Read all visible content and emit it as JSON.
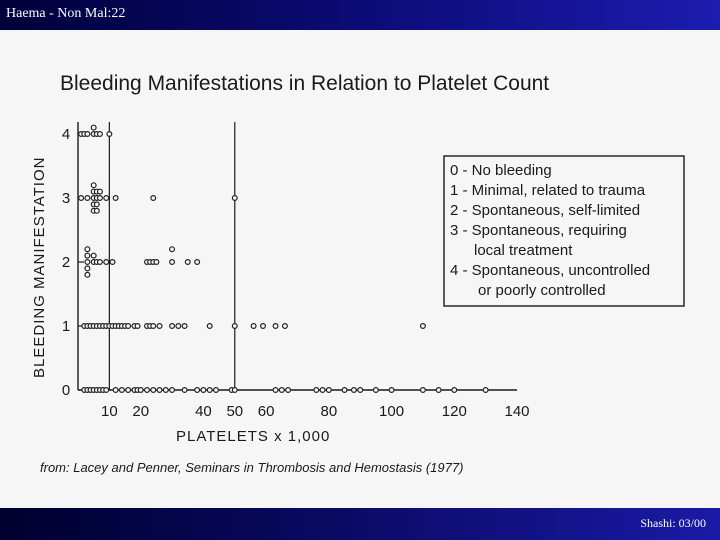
{
  "header": {
    "title": "Haema - Non Mal:22"
  },
  "footer": {
    "text": "Shashi: 03/00"
  },
  "colors": {
    "header_bar": "#0a0a70",
    "slide_background": "#f6f6f6",
    "ink": "#1a1a1a"
  },
  "chart_data": {
    "type": "scatter",
    "title": "Bleeding Manifestations in Relation to Platelet Count",
    "xlabel": "PLATELETS x 1,000",
    "ylabel": "BLEEDING MANIFESTATION",
    "x_ticks": [
      10,
      20,
      40,
      50,
      60,
      80,
      100,
      120,
      140
    ],
    "y_ticks": [
      0,
      1,
      2,
      3,
      4
    ],
    "xlim": [
      0,
      140
    ],
    "ylim": [
      0,
      4
    ],
    "reference_lines_x": [
      10,
      50
    ],
    "grid": false,
    "legend_position": "right",
    "legend": [
      "0 - No bleeding",
      "1 - Minimal, related to trauma",
      "2 - Spontaneous, self-limited",
      "3 - Spontaneous, requiring",
      "local treatment",
      "4 - Spontaneous, uncontrolled",
      "or poorly controlled"
    ],
    "source": "from: Lacey and Penner, Seminars in Thrombosis and Hemostasis (1977)",
    "points": [
      {
        "x": 1,
        "y": 4
      },
      {
        "x": 2,
        "y": 4
      },
      {
        "x": 3,
        "y": 4
      },
      {
        "x": 5,
        "y": 4
      },
      {
        "x": 5,
        "y": 4.1
      },
      {
        "x": 6,
        "y": 4
      },
      {
        "x": 7,
        "y": 4
      },
      {
        "x": 10,
        "y": 4
      },
      {
        "x": 1,
        "y": 3
      },
      {
        "x": 3,
        "y": 3
      },
      {
        "x": 5,
        "y": 3
      },
      {
        "x": 5,
        "y": 3.1
      },
      {
        "x": 5,
        "y": 3.2
      },
      {
        "x": 5,
        "y": 2.9
      },
      {
        "x": 5,
        "y": 2.8
      },
      {
        "x": 6,
        "y": 3
      },
      {
        "x": 6,
        "y": 3.1
      },
      {
        "x": 6,
        "y": 2.9
      },
      {
        "x": 6,
        "y": 2.8
      },
      {
        "x": 7,
        "y": 3
      },
      {
        "x": 7,
        "y": 3.1
      },
      {
        "x": 9,
        "y": 3
      },
      {
        "x": 12,
        "y": 3
      },
      {
        "x": 24,
        "y": 3
      },
      {
        "x": 50,
        "y": 3
      },
      {
        "x": 3,
        "y": 2
      },
      {
        "x": 3,
        "y": 2.1
      },
      {
        "x": 3,
        "y": 2.2
      },
      {
        "x": 3,
        "y": 1.9
      },
      {
        "x": 3,
        "y": 1.8
      },
      {
        "x": 5,
        "y": 2
      },
      {
        "x": 5,
        "y": 2.1
      },
      {
        "x": 6,
        "y": 2
      },
      {
        "x": 7,
        "y": 2
      },
      {
        "x": 9,
        "y": 2
      },
      {
        "x": 11,
        "y": 2
      },
      {
        "x": 22,
        "y": 2
      },
      {
        "x": 23,
        "y": 2
      },
      {
        "x": 24,
        "y": 2
      },
      {
        "x": 25,
        "y": 2
      },
      {
        "x": 30,
        "y": 2
      },
      {
        "x": 30,
        "y": 2.2
      },
      {
        "x": 35,
        "y": 2
      },
      {
        "x": 38,
        "y": 2
      },
      {
        "x": 2,
        "y": 1
      },
      {
        "x": 3,
        "y": 1
      },
      {
        "x": 4,
        "y": 1
      },
      {
        "x": 5,
        "y": 1
      },
      {
        "x": 6,
        "y": 1
      },
      {
        "x": 7,
        "y": 1
      },
      {
        "x": 8,
        "y": 1
      },
      {
        "x": 9,
        "y": 1
      },
      {
        "x": 10,
        "y": 1
      },
      {
        "x": 11,
        "y": 1
      },
      {
        "x": 12,
        "y": 1
      },
      {
        "x": 13,
        "y": 1
      },
      {
        "x": 14,
        "y": 1
      },
      {
        "x": 15,
        "y": 1
      },
      {
        "x": 16,
        "y": 1
      },
      {
        "x": 18,
        "y": 1
      },
      {
        "x": 19,
        "y": 1
      },
      {
        "x": 22,
        "y": 1
      },
      {
        "x": 23,
        "y": 1
      },
      {
        "x": 24,
        "y": 1
      },
      {
        "x": 26,
        "y": 1
      },
      {
        "x": 30,
        "y": 1
      },
      {
        "x": 32,
        "y": 1
      },
      {
        "x": 34,
        "y": 1
      },
      {
        "x": 42,
        "y": 1
      },
      {
        "x": 50,
        "y": 1
      },
      {
        "x": 56,
        "y": 1
      },
      {
        "x": 59,
        "y": 1
      },
      {
        "x": 63,
        "y": 1
      },
      {
        "x": 66,
        "y": 1
      },
      {
        "x": 110,
        "y": 1
      },
      {
        "x": 2,
        "y": 0
      },
      {
        "x": 3,
        "y": 0
      },
      {
        "x": 4,
        "y": 0
      },
      {
        "x": 5,
        "y": 0
      },
      {
        "x": 6,
        "y": 0
      },
      {
        "x": 7,
        "y": 0
      },
      {
        "x": 8,
        "y": 0
      },
      {
        "x": 9,
        "y": 0
      },
      {
        "x": 12,
        "y": 0
      },
      {
        "x": 14,
        "y": 0
      },
      {
        "x": 16,
        "y": 0
      },
      {
        "x": 18,
        "y": 0
      },
      {
        "x": 19,
        "y": 0
      },
      {
        "x": 20,
        "y": 0
      },
      {
        "x": 22,
        "y": 0
      },
      {
        "x": 24,
        "y": 0
      },
      {
        "x": 26,
        "y": 0
      },
      {
        "x": 28,
        "y": 0
      },
      {
        "x": 30,
        "y": 0
      },
      {
        "x": 34,
        "y": 0
      },
      {
        "x": 38,
        "y": 0
      },
      {
        "x": 40,
        "y": 0
      },
      {
        "x": 42,
        "y": 0
      },
      {
        "x": 44,
        "y": 0
      },
      {
        "x": 49,
        "y": 0
      },
      {
        "x": 50,
        "y": 0
      },
      {
        "x": 63,
        "y": 0
      },
      {
        "x": 65,
        "y": 0
      },
      {
        "x": 67,
        "y": 0
      },
      {
        "x": 76,
        "y": 0
      },
      {
        "x": 78,
        "y": 0
      },
      {
        "x": 80,
        "y": 0
      },
      {
        "x": 85,
        "y": 0
      },
      {
        "x": 88,
        "y": 0
      },
      {
        "x": 90,
        "y": 0
      },
      {
        "x": 95,
        "y": 0
      },
      {
        "x": 100,
        "y": 0
      },
      {
        "x": 110,
        "y": 0
      },
      {
        "x": 115,
        "y": 0
      },
      {
        "x": 120,
        "y": 0
      },
      {
        "x": 130,
        "y": 0
      }
    ]
  }
}
